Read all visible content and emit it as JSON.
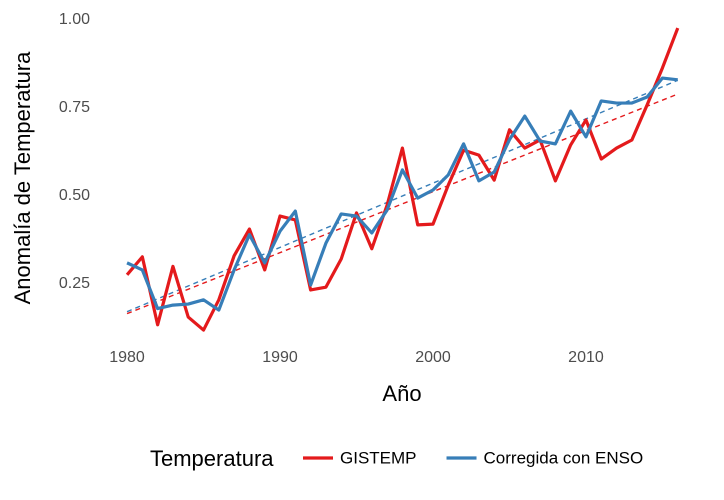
{
  "chart_data": {
    "type": "line",
    "x_label": "Año",
    "y_label": "Anomalía de Temperatura",
    "legend_title": "Temperatura",
    "legend_position": "bottom",
    "x": [
      1980,
      1981,
      1982,
      1983,
      1984,
      1985,
      1986,
      1987,
      1988,
      1989,
      1990,
      1991,
      1992,
      1993,
      1994,
      1995,
      1996,
      1997,
      1998,
      1999,
      2000,
      2001,
      2002,
      2003,
      2004,
      2005,
      2006,
      2007,
      2008,
      2009,
      2010,
      2011,
      2012,
      2013,
      2014,
      2015,
      2016
    ],
    "series": [
      {
        "name": "GISTEMP",
        "color": "#e41a1c",
        "values": [
          0.276,
          0.327,
          0.134,
          0.3,
          0.156,
          0.119,
          0.205,
          0.33,
          0.406,
          0.29,
          0.443,
          0.432,
          0.233,
          0.241,
          0.321,
          0.452,
          0.35,
          0.474,
          0.636,
          0.418,
          0.42,
          0.531,
          0.63,
          0.616,
          0.545,
          0.688,
          0.636,
          0.659,
          0.543,
          0.645,
          0.716,
          0.605,
          0.636,
          0.659,
          0.759,
          0.864,
          0.977
        ]
      },
      {
        "name": "Corregida con ENSO",
        "color": "#377eb8",
        "values": [
          0.31,
          0.29,
          0.18,
          0.19,
          0.193,
          0.205,
          0.176,
          0.29,
          0.39,
          0.31,
          0.4,
          0.457,
          0.247,
          0.366,
          0.449,
          0.443,
          0.395,
          0.46,
          0.574,
          0.494,
          0.517,
          0.56,
          0.648,
          0.543,
          0.568,
          0.66,
          0.727,
          0.656,
          0.648,
          0.741,
          0.668,
          0.77,
          0.764,
          0.764,
          0.781,
          0.835,
          0.83
        ]
      }
    ],
    "trend_lines": true,
    "grid": false,
    "xlim": [
      1978.2,
      2017.8
    ],
    "xticks": [
      1980,
      1990,
      2000,
      2010
    ],
    "ylim": [
      0.09,
      1.03
    ],
    "yticks": [
      0.25,
      {
        "value": 0.5,
        "label": "0.50"
      },
      0.75,
      {
        "value": 1.0,
        "label": "1.00"
      }
    ]
  }
}
